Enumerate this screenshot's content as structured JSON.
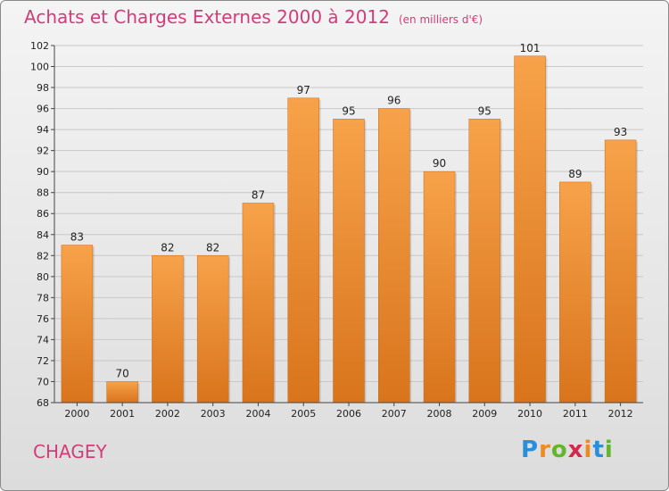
{
  "title": "Achats et Charges Externes 2000 à 2012",
  "unit_note": "(en milliers d'€)",
  "commune": "CHAGEY",
  "logo": {
    "text": "Proxiti",
    "letters": [
      "P",
      "r",
      "o",
      "x",
      "i",
      "t",
      "i"
    ],
    "colors": [
      "#2a8fd8",
      "#f08a1c",
      "#62b52d",
      "#d2294b",
      "#f08a1c",
      "#2a8fd8",
      "#62b52d"
    ]
  },
  "colors": {
    "bar": "#f2923a",
    "title": "#d23c7a"
  },
  "chart_data": {
    "type": "bar",
    "title": "Achats et Charges Externes 2000 à 2012",
    "categories": [
      "2000",
      "2001",
      "2002",
      "2003",
      "2004",
      "2005",
      "2006",
      "2007",
      "2008",
      "2009",
      "2010",
      "2011",
      "2012"
    ],
    "values": [
      83,
      70,
      82,
      82,
      87,
      97,
      95,
      96,
      90,
      95,
      101,
      89,
      93
    ],
    "ylim": [
      68,
      102
    ],
    "yticks": [
      68,
      70,
      72,
      74,
      76,
      78,
      80,
      82,
      84,
      86,
      88,
      90,
      92,
      94,
      96,
      98,
      100,
      102
    ],
    "grid": true,
    "legend": "none"
  }
}
